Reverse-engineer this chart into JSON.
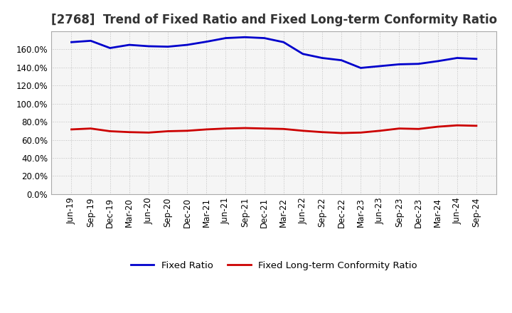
{
  "title": "[2768]  Trend of Fixed Ratio and Fixed Long-term Conformity Ratio",
  "x_labels": [
    "Jun-19",
    "Sep-19",
    "Dec-19",
    "Mar-20",
    "Jun-20",
    "Sep-20",
    "Dec-20",
    "Mar-21",
    "Jun-21",
    "Sep-21",
    "Dec-21",
    "Mar-22",
    "Jun-22",
    "Sep-22",
    "Dec-22",
    "Mar-23",
    "Jun-23",
    "Sep-23",
    "Dec-23",
    "Mar-24",
    "Jun-24",
    "Sep-24"
  ],
  "fixed_ratio": [
    168.0,
    169.5,
    161.5,
    165.0,
    163.5,
    163.0,
    165.0,
    168.5,
    172.5,
    173.5,
    172.5,
    168.0,
    155.0,
    150.5,
    148.0,
    139.5,
    141.5,
    143.5,
    144.0,
    147.0,
    150.5,
    149.5
  ],
  "fixed_lt_ratio": [
    71.5,
    72.5,
    69.5,
    68.5,
    68.0,
    69.5,
    70.0,
    71.5,
    72.5,
    73.0,
    72.5,
    72.0,
    70.0,
    68.5,
    67.5,
    68.0,
    70.0,
    72.5,
    72.0,
    74.5,
    76.0,
    75.5
  ],
  "fixed_ratio_color": "#0000cc",
  "fixed_lt_ratio_color": "#cc0000",
  "background_color": "#ffffff",
  "plot_bg_color": "#f5f5f5",
  "grid_color": "#bbbbbb",
  "ylim": [
    0,
    180
  ],
  "yticks": [
    0,
    20,
    40,
    60,
    80,
    100,
    120,
    140,
    160
  ],
  "legend_fixed_ratio": "Fixed Ratio",
  "legend_fixed_lt_ratio": "Fixed Long-term Conformity Ratio",
  "title_fontsize": 12,
  "axis_fontsize": 8.5,
  "legend_fontsize": 9.5,
  "line_width": 2.0
}
